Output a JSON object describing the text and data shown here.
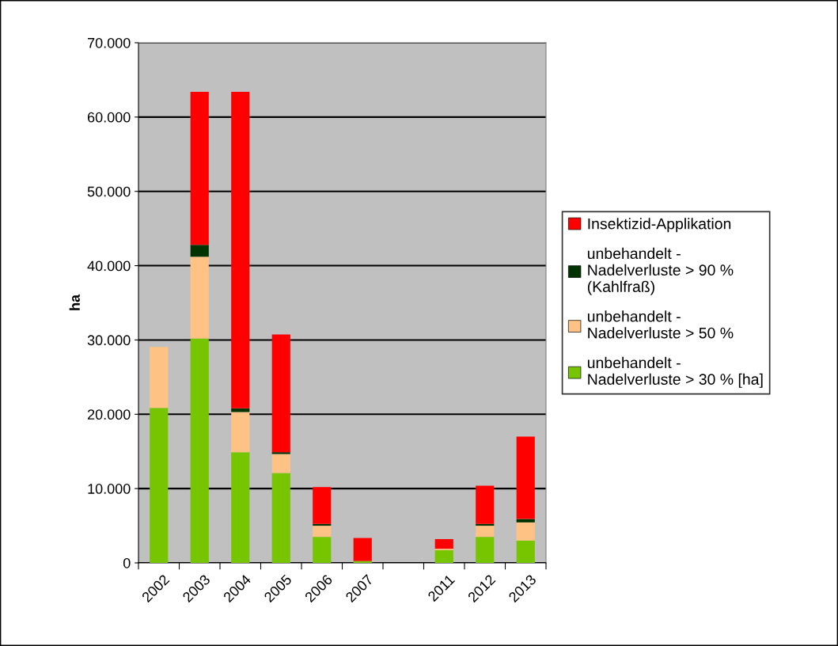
{
  "chart_data": {
    "type": "bar",
    "stacked": true,
    "ylabel": "ha",
    "categories": [
      "2002",
      "2003",
      "2004",
      "2005",
      "2006",
      "2007",
      null,
      "2011",
      "2012",
      "2013"
    ],
    "series": [
      {
        "name": "unbehandelt - Nadelverluste > 30 % [ha]",
        "color": "#77c400",
        "values": [
          20850,
          30200,
          14900,
          12100,
          3500,
          250,
          0,
          1700,
          3500,
          3000
        ]
      },
      {
        "name": "unbehandelt - Nadelverluste > 50 %",
        "color": "#ffc285",
        "values": [
          8200,
          11000,
          5400,
          2550,
          1500,
          0,
          0,
          200,
          1500,
          2450
        ]
      },
      {
        "name": "unbehandelt - Nadelverluste > 90 % (Kahlfraß)",
        "color": "#003300",
        "values": [
          0,
          1600,
          500,
          250,
          250,
          0,
          0,
          0,
          250,
          450
        ]
      },
      {
        "name": "Insektizid-Applikation",
        "color": "#ff0000",
        "values": [
          0,
          20600,
          42600,
          15850,
          4950,
          3100,
          0,
          1300,
          5150,
          11100
        ]
      }
    ],
    "ylim": [
      0,
      70000
    ],
    "yticks": [
      0,
      {
        "value": 10000,
        "label": "10.000"
      },
      {
        "value": 20000,
        "label": "20.000"
      },
      {
        "value": 30000,
        "label": "30.000"
      },
      {
        "value": 40000,
        "label": "40.000"
      },
      {
        "value": 50000,
        "label": "50.000"
      },
      {
        "value": 60000,
        "label": "60.000"
      },
      {
        "value": 70000,
        "label": "70.000"
      }
    ],
    "grid": "y",
    "legend": "right"
  }
}
